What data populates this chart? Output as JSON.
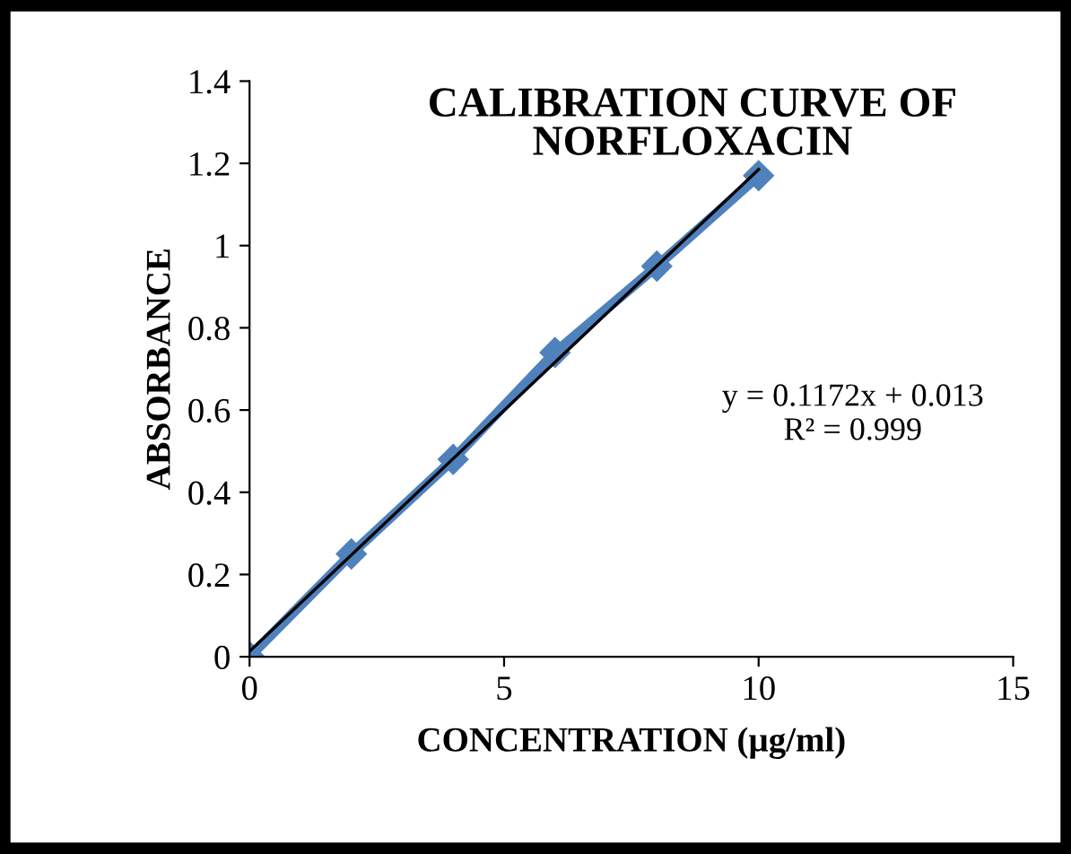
{
  "chart_data": {
    "type": "line",
    "title": "CALIBRATION CURVE OF\nNORFLOXACIN",
    "xlabel": "CONCENTRATION (µg/ml)",
    "ylabel": "ABSORBANCE",
    "x": [
      0,
      2,
      4,
      6,
      8,
      10
    ],
    "series": [
      {
        "color": "#4f81bd",
        "values": [
          0,
          0.25,
          0.48,
          0.74,
          0.95,
          1.17
        ],
        "marker": "diamond"
      },
      {
        "type": "line",
        "color": "#000000",
        "x": [
          0,
          10
        ],
        "values": [
          0.013,
          1.185
        ],
        "marker": "none"
      }
    ],
    "annotations": [
      "y = 0.1172x + 0.013\nR² = 0.999"
    ],
    "xlim": [
      0,
      15
    ],
    "xticks": [
      0,
      5,
      10,
      15
    ],
    "ylim": [
      0,
      1.4
    ],
    "yticks": [
      0,
      0.2,
      0.4,
      0.6,
      0.8,
      1,
      1.2,
      1.4
    ],
    "grid": false,
    "legend": false
  }
}
